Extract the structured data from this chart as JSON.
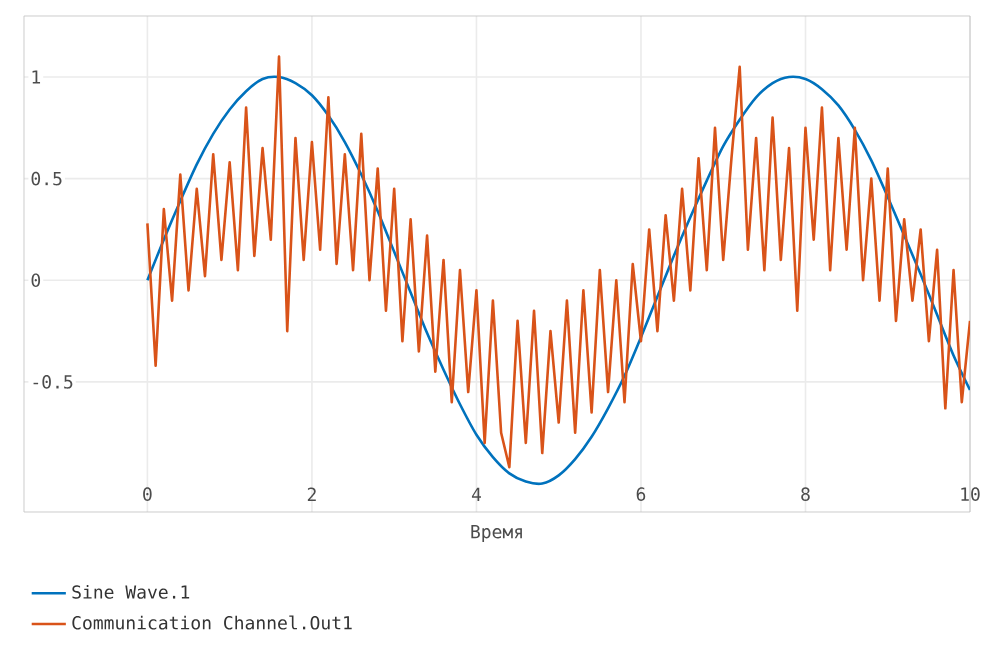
{
  "chart_data": {
    "type": "line",
    "xlabel": "Время",
    "xlim": [
      -1.5,
      10
    ],
    "ylim": [
      -1.14,
      1.3
    ],
    "xticks": [
      0,
      2,
      4,
      6,
      8,
      10
    ],
    "yticks": [
      -0.5,
      0,
      0.5,
      1
    ],
    "grid": true,
    "legend": "bottom",
    "marker": "none",
    "line_style": "solid",
    "series": [
      {
        "name": "Sine Wave.1",
        "color": "#0072bd",
        "x": [
          0,
          0.2,
          0.4,
          0.6,
          0.8,
          1.0,
          1.2,
          1.4,
          1.6,
          1.8,
          2.0,
          2.2,
          2.4,
          2.6,
          2.8,
          3.0,
          3.2,
          3.4,
          3.6,
          3.8,
          4.0,
          4.2,
          4.4,
          4.6,
          4.8,
          5.0,
          5.2,
          5.4,
          5.6,
          5.8,
          6.0,
          6.2,
          6.4,
          6.6,
          6.8,
          7.0,
          7.2,
          7.4,
          7.6,
          7.8,
          8.0,
          8.2,
          8.4,
          8.6,
          8.8,
          9.0,
          9.2,
          9.4,
          9.6,
          9.8,
          10
        ],
        "values": [
          0,
          0.2,
          0.39,
          0.57,
          0.72,
          0.84,
          0.93,
          0.99,
          1.0,
          0.97,
          0.91,
          0.81,
          0.68,
          0.52,
          0.34,
          0.14,
          -0.06,
          -0.26,
          -0.44,
          -0.61,
          -0.76,
          -0.87,
          -0.95,
          -0.99,
          -1.0,
          -0.96,
          -0.88,
          -0.77,
          -0.63,
          -0.47,
          -0.28,
          -0.08,
          0.12,
          0.31,
          0.49,
          0.66,
          0.79,
          0.9,
          0.97,
          1.0,
          0.99,
          0.94,
          0.86,
          0.74,
          0.59,
          0.41,
          0.22,
          0.03,
          -0.17,
          -0.37,
          -0.54
        ]
      },
      {
        "name": "Communication Channel.Out1",
        "color": "#d95319",
        "x": [
          0,
          0.1,
          0.2,
          0.3,
          0.4,
          0.5,
          0.6,
          0.7,
          0.8,
          0.9,
          1.0,
          1.1,
          1.2,
          1.3,
          1.4,
          1.5,
          1.6,
          1.7,
          1.8,
          1.9,
          2.0,
          2.1,
          2.2,
          2.3,
          2.4,
          2.5,
          2.6,
          2.7,
          2.8,
          2.9,
          3.0,
          3.1,
          3.2,
          3.3,
          3.4,
          3.5,
          3.6,
          3.7,
          3.8,
          3.9,
          4.0,
          4.1,
          4.2,
          4.3,
          4.4,
          4.5,
          4.6,
          4.7,
          4.8,
          4.9,
          5.0,
          5.1,
          5.2,
          5.3,
          5.4,
          5.5,
          5.6,
          5.7,
          5.8,
          5.9,
          6.0,
          6.1,
          6.2,
          6.3,
          6.4,
          6.5,
          6.6,
          6.7,
          6.8,
          6.9,
          7.0,
          7.1,
          7.2,
          7.3,
          7.4,
          7.5,
          7.6,
          7.7,
          7.8,
          7.9,
          8.0,
          8.1,
          8.2,
          8.3,
          8.4,
          8.5,
          8.6,
          8.7,
          8.8,
          8.9,
          9.0,
          9.1,
          9.2,
          9.3,
          9.4,
          9.5,
          9.6,
          9.7,
          9.8,
          9.9,
          10
        ],
        "values": [
          0.28,
          -0.42,
          0.35,
          -0.1,
          0.52,
          -0.05,
          0.45,
          0.02,
          0.62,
          0.1,
          0.58,
          0.05,
          0.85,
          0.12,
          0.65,
          0.2,
          1.1,
          -0.25,
          0.7,
          0.1,
          0.68,
          0.15,
          0.9,
          0.08,
          0.62,
          0.05,
          0.72,
          0.0,
          0.55,
          -0.15,
          0.45,
          -0.3,
          0.3,
          -0.35,
          0.22,
          -0.45,
          0.1,
          -0.6,
          0.05,
          -0.55,
          -0.05,
          -0.8,
          -0.1,
          -0.75,
          -0.92,
          -0.2,
          -0.8,
          -0.15,
          -0.85,
          -0.25,
          -0.7,
          -0.1,
          -0.75,
          -0.05,
          -0.65,
          0.05,
          -0.55,
          0.0,
          -0.6,
          0.08,
          -0.3,
          0.25,
          -0.25,
          0.32,
          -0.1,
          0.45,
          -0.05,
          0.6,
          0.05,
          0.75,
          0.1,
          0.6,
          1.05,
          0.15,
          0.7,
          0.05,
          0.8,
          0.1,
          0.65,
          -0.15,
          0.75,
          0.2,
          0.85,
          0.05,
          0.7,
          0.15,
          0.75,
          0.0,
          0.5,
          -0.1,
          0.55,
          -0.2,
          0.3,
          -0.1,
          0.25,
          -0.3,
          0.15,
          -0.63,
          0.05,
          -0.6,
          -0.2
        ]
      }
    ]
  }
}
